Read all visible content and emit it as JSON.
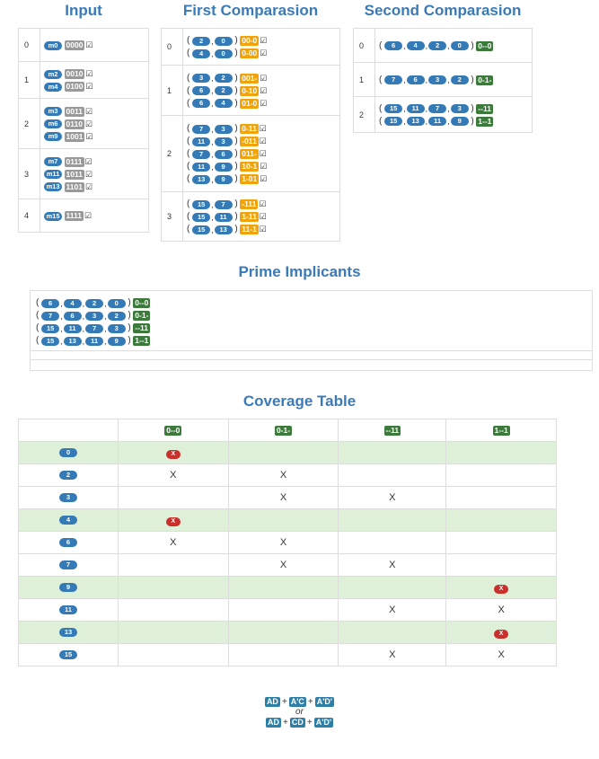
{
  "headings": {
    "input": "Input",
    "first": "First Comparasion",
    "second": "Second Comparasion",
    "prime": "Prime Implicants",
    "coverage": "Coverage Table"
  },
  "input_groups": [
    {
      "index": "0",
      "items": [
        {
          "m": "m0",
          "bin": "0000"
        }
      ]
    },
    {
      "index": "1",
      "items": [
        {
          "m": "m2",
          "bin": "0010"
        },
        {
          "m": "m4",
          "bin": "0100"
        }
      ]
    },
    {
      "index": "2",
      "items": [
        {
          "m": "m3",
          "bin": "0011"
        },
        {
          "m": "m6",
          "bin": "0110"
        },
        {
          "m": "m9",
          "bin": "1001"
        }
      ]
    },
    {
      "index": "3",
      "items": [
        {
          "m": "m7",
          "bin": "0111"
        },
        {
          "m": "m11",
          "bin": "1011"
        },
        {
          "m": "m13",
          "bin": "1101"
        }
      ]
    },
    {
      "index": "4",
      "items": [
        {
          "m": "m15",
          "bin": "1111"
        }
      ]
    }
  ],
  "first_groups": [
    {
      "index": "0",
      "items": [
        {
          "terms": [
            "2",
            "0"
          ],
          "code": "00-0"
        },
        {
          "terms": [
            "4",
            "0"
          ],
          "code": "0-00"
        }
      ]
    },
    {
      "index": "1",
      "items": [
        {
          "terms": [
            "3",
            "2"
          ],
          "code": "001-"
        },
        {
          "terms": [
            "6",
            "2"
          ],
          "code": "0-10"
        },
        {
          "terms": [
            "6",
            "4"
          ],
          "code": "01-0"
        }
      ]
    },
    {
      "index": "2",
      "items": [
        {
          "terms": [
            "7",
            "3"
          ],
          "code": "0-11"
        },
        {
          "terms": [
            "11",
            "3"
          ],
          "code": "-011"
        },
        {
          "terms": [
            "7",
            "6"
          ],
          "code": "011-"
        },
        {
          "terms": [
            "11",
            "9"
          ],
          "code": "10-1"
        },
        {
          "terms": [
            "13",
            "9"
          ],
          "code": "1-01"
        }
      ]
    },
    {
      "index": "3",
      "items": [
        {
          "terms": [
            "15",
            "7"
          ],
          "code": "-111"
        },
        {
          "terms": [
            "15",
            "11"
          ],
          "code": "1-11"
        },
        {
          "terms": [
            "15",
            "13"
          ],
          "code": "11-1"
        }
      ]
    }
  ],
  "second_groups": [
    {
      "index": "0",
      "items": [
        {
          "terms": [
            "6",
            "4",
            "2",
            "0"
          ],
          "code": "0--0"
        }
      ]
    },
    {
      "index": "1",
      "items": [
        {
          "terms": [
            "7",
            "6",
            "3",
            "2"
          ],
          "code": "0-1-"
        }
      ]
    },
    {
      "index": "2",
      "items": [
        {
          "terms": [
            "15",
            "11",
            "7",
            "3"
          ],
          "code": "--11"
        },
        {
          "terms": [
            "15",
            "13",
            "11",
            "9"
          ],
          "code": "1--1"
        }
      ]
    }
  ],
  "prime_implicants": [
    {
      "terms": [
        "6",
        "4",
        "2",
        "0"
      ],
      "code": "0--0"
    },
    {
      "terms": [
        "7",
        "6",
        "3",
        "2"
      ],
      "code": "0-1-"
    },
    {
      "terms": [
        "15",
        "11",
        "7",
        "3"
      ],
      "code": "--11"
    },
    {
      "terms": [
        "15",
        "13",
        "11",
        "9"
      ],
      "code": "1--1"
    }
  ],
  "coverage": {
    "columns": [
      "0--0",
      "0-1-",
      "--11",
      "1--1"
    ],
    "rows": [
      {
        "minterm": "0",
        "essential": true,
        "cells": [
          "E",
          "",
          "",
          ""
        ]
      },
      {
        "minterm": "2",
        "essential": false,
        "cells": [
          "X",
          "X",
          "",
          ""
        ]
      },
      {
        "minterm": "3",
        "essential": false,
        "cells": [
          "",
          "X",
          "X",
          ""
        ]
      },
      {
        "minterm": "4",
        "essential": true,
        "cells": [
          "E",
          "",
          "",
          ""
        ]
      },
      {
        "minterm": "6",
        "essential": false,
        "cells": [
          "X",
          "X",
          "",
          ""
        ]
      },
      {
        "minterm": "7",
        "essential": false,
        "cells": [
          "",
          "X",
          "X",
          ""
        ]
      },
      {
        "minterm": "9",
        "essential": true,
        "cells": [
          "",
          "",
          "",
          "E"
        ]
      },
      {
        "minterm": "11",
        "essential": false,
        "cells": [
          "",
          "",
          "X",
          "X"
        ]
      },
      {
        "minterm": "13",
        "essential": true,
        "cells": [
          "",
          "",
          "",
          "E"
        ]
      },
      {
        "minterm": "15",
        "essential": false,
        "cells": [
          "",
          "",
          "X",
          "X"
        ]
      }
    ],
    "x_label": "X",
    "x_ess_label": "X"
  },
  "solutions": {
    "first": [
      "AD",
      "A'C",
      "A'D'"
    ],
    "or_label": "or",
    "second": [
      "AD",
      "CD",
      "A'D'"
    ],
    "plus": "+"
  },
  "colors": {
    "accent": "#337ab7",
    "heading": "#3a7ab8",
    "orange": "#f0a30a",
    "green": "#3c7a3c",
    "gray": "#999999",
    "essential_row": "#dff0d8",
    "essential_x": "#c9302c"
  }
}
